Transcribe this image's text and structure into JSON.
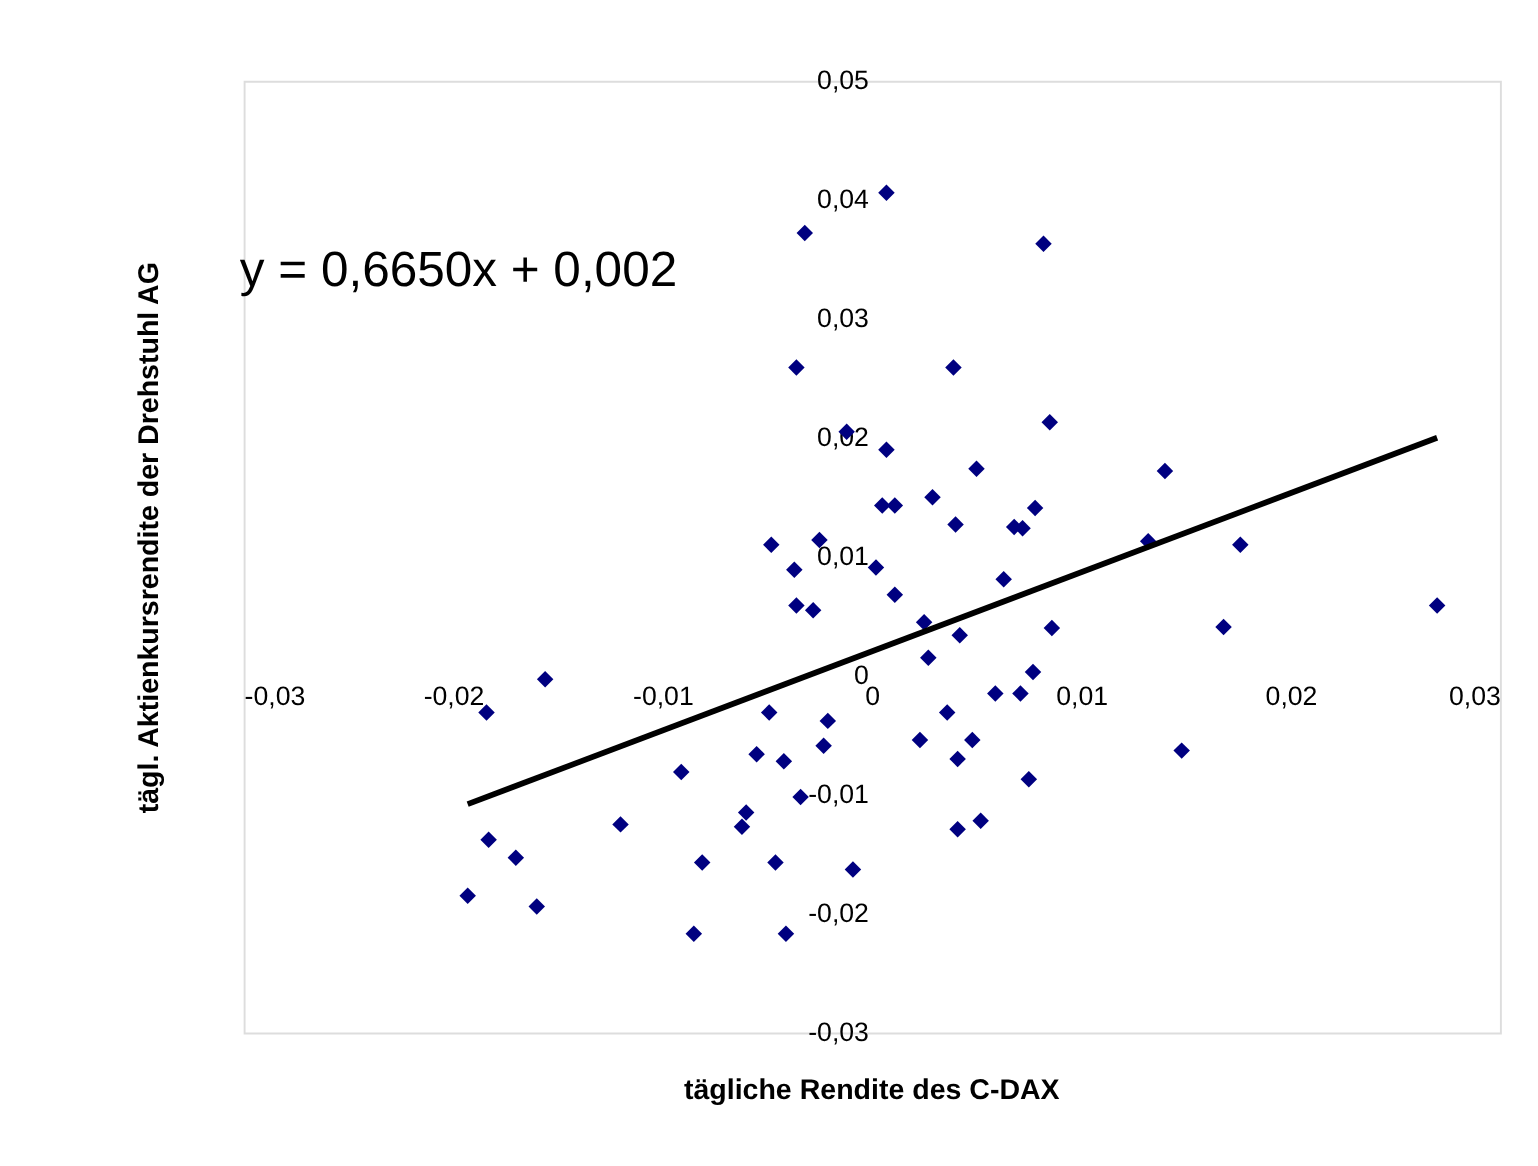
{
  "chart_data": {
    "type": "scatter",
    "xlabel": "tägliche Rendite des C-DAX",
    "ylabel": "tägl. Aktienkursrendite der Drehstuhl AG",
    "annotations": [
      "y = 0,6650x + 0,002"
    ],
    "xlim": [
      -0.03,
      0.03
    ],
    "ylim": [
      -0.03,
      0.05
    ],
    "xticks": [
      {
        "value": -0.03,
        "label": "-0,03"
      },
      {
        "value": -0.02,
        "label": "-0,02"
      },
      {
        "value": -0.01,
        "label": "-0,01"
      },
      {
        "value": 0,
        "label": "0"
      },
      {
        "value": 0.01,
        "label": "0,01"
      },
      {
        "value": 0.02,
        "label": "0,02"
      },
      {
        "value": 0.03,
        "label": "0,03"
      }
    ],
    "yticks": [
      {
        "value": -0.03,
        "label": "-0,03"
      },
      {
        "value": -0.02,
        "label": "-0,02"
      },
      {
        "value": -0.01,
        "label": "-0,01"
      },
      {
        "value": 0,
        "label": "0"
      },
      {
        "value": 0.01,
        "label": "0,01"
      },
      {
        "value": 0.02,
        "label": "0,02"
      },
      {
        "value": 0.03,
        "label": "0,03"
      },
      {
        "value": 0.04,
        "label": "0,04"
      },
      {
        "value": 0.05,
        "label": "0,05"
      }
    ],
    "grid": false,
    "series": [
      {
        "color": "#000080",
        "marker": "diamond",
        "x": [
          -0.0184,
          -0.0156,
          -0.0193,
          -0.0183,
          -0.017,
          -0.016,
          -0.012,
          -0.0091,
          -0.0081,
          -0.0085,
          -0.006,
          -0.0062,
          -0.0055,
          -0.0049,
          -0.0042,
          -0.0046,
          -0.0041,
          -0.0034,
          -0.0023,
          -0.0021,
          -0.0009,
          -0.0032,
          -0.0036,
          -0.0012,
          0.0007,
          0.0007,
          0.0039,
          0.005,
          0.0029,
          0.0005,
          0.0011,
          0.004,
          -0.0048,
          -0.0025,
          -0.0037,
          0.0002,
          -0.0036,
          -0.0028,
          0.0011,
          0.0025,
          0.0042,
          0.0086,
          0.0027,
          0.0077,
          0.0059,
          0.0071,
          0.0036,
          0.0023,
          0.0048,
          0.0041,
          0.0075,
          0.0148,
          0.0041,
          0.0052,
          0.0085,
          0.0082,
          0.014,
          0.0078,
          0.0068,
          0.0072,
          0.0132,
          0.0176,
          0.0063,
          0.027,
          0.0168
        ],
        "values": [
          -0.0031,
          -0.0003,
          -0.0185,
          -0.0138,
          -0.0153,
          -0.0194,
          -0.0125,
          -0.0081,
          -0.0157,
          -0.0217,
          -0.0115,
          -0.0127,
          -0.0066,
          -0.0031,
          -0.0072,
          -0.0157,
          -0.0217,
          -0.0102,
          -0.0059,
          -0.0038,
          -0.0163,
          0.0372,
          0.0259,
          0.0205,
          0.0406,
          0.019,
          0.0259,
          0.0174,
          0.015,
          0.0143,
          0.0143,
          0.0127,
          0.011,
          0.0114,
          0.0089,
          0.0091,
          0.0059,
          0.0055,
          0.0068,
          0.0045,
          0.0034,
          0.004,
          0.0015,
          0.0003,
          -0.0015,
          -0.0015,
          -0.0031,
          -0.0054,
          -0.0054,
          -0.007,
          -0.0087,
          -0.0063,
          -0.0129,
          -0.0122,
          0.0213,
          0.0363,
          0.0172,
          0.0141,
          0.0125,
          0.0124,
          0.0113,
          0.011,
          0.0081,
          0.0059,
          0.0041
        ]
      },
      {
        "type": "line",
        "color": "#000000",
        "marker": "none",
        "line_style": "solid",
        "x": [
          -0.0193,
          0.027
        ],
        "values": [
          -0.0108,
          0.02
        ]
      }
    ]
  }
}
